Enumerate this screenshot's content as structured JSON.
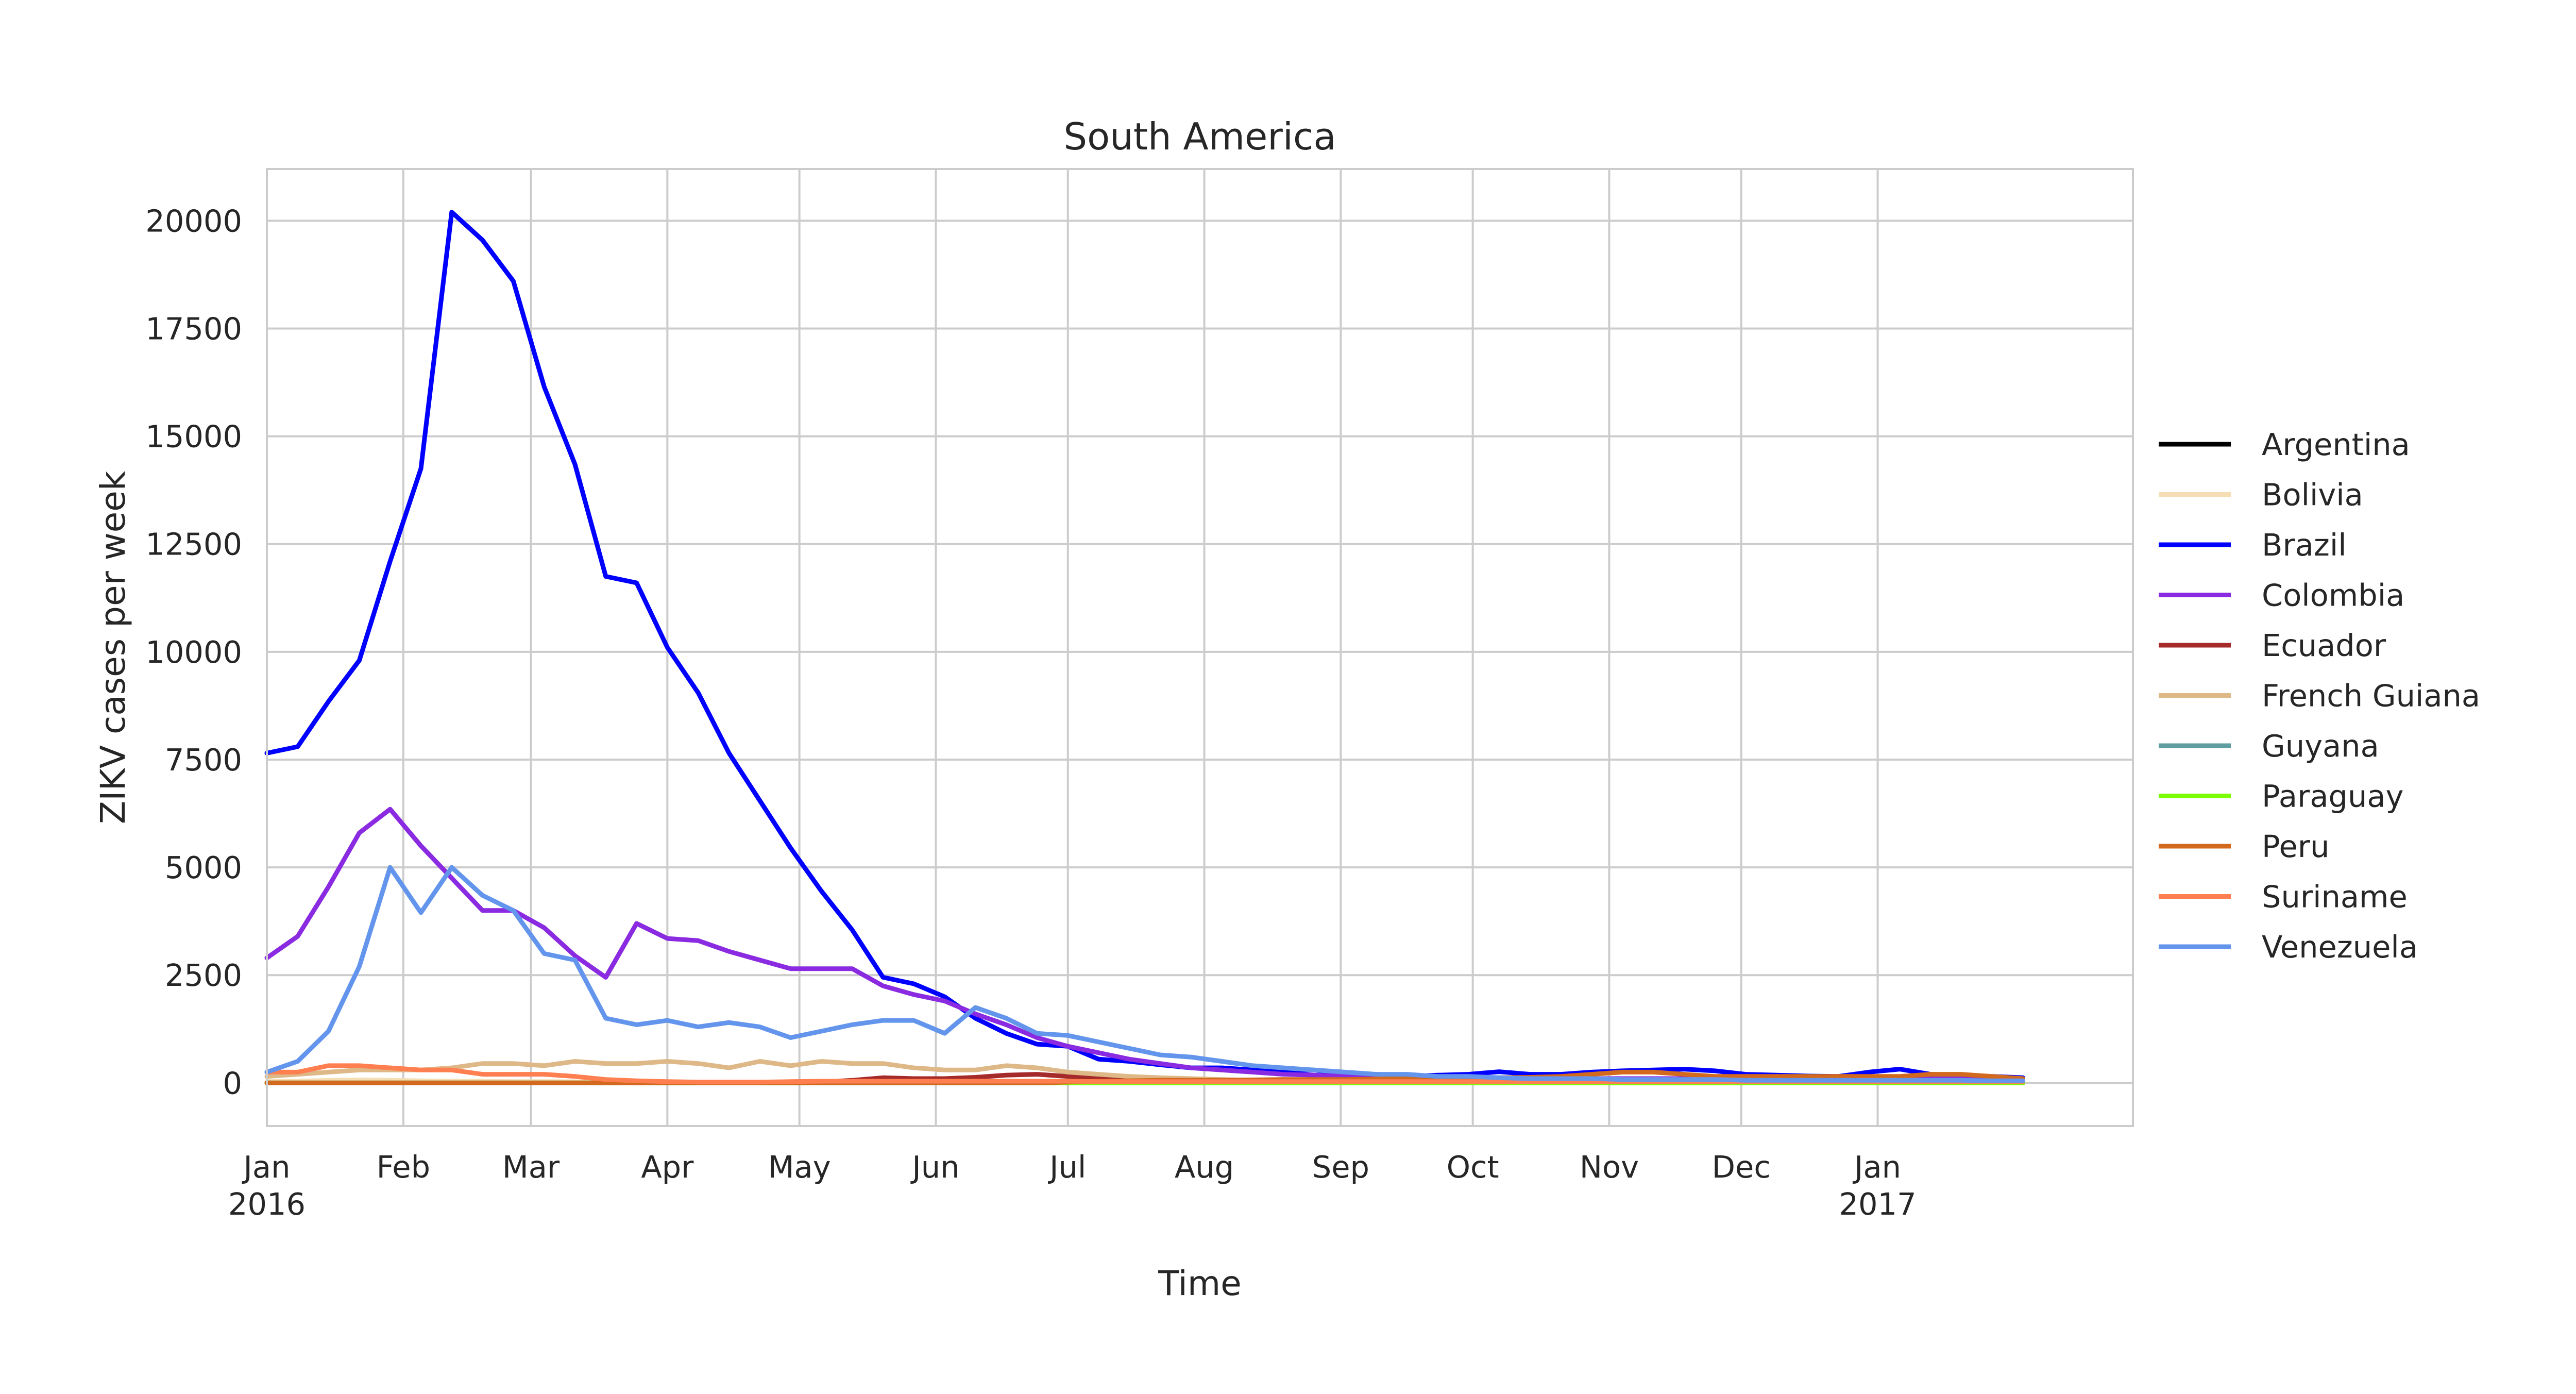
{
  "chart_data": {
    "type": "line",
    "title": "South America",
    "xlabel": "Time",
    "ylabel": "ZIKV cases per week",
    "xlim": [
      "2016-01-01",
      "2017-02-28"
    ],
    "ylim": [
      -1000,
      21200
    ],
    "grid": true,
    "legend_position": "right",
    "y_ticks": [
      0,
      2500,
      5000,
      7500,
      10000,
      12500,
      15000,
      17500,
      20000
    ],
    "y_tick_labels": [
      "0",
      "2500",
      "5000",
      "7500",
      "10000",
      "12500",
      "15000",
      "17500",
      "20000"
    ],
    "x_ticks": [
      "2016-01-01",
      "2016-02-01",
      "2016-03-01",
      "2016-04-01",
      "2016-05-01",
      "2016-06-01",
      "2016-07-01",
      "2016-08-01",
      "2016-09-01",
      "2016-10-01",
      "2016-11-01",
      "2016-12-01",
      "2017-01-01"
    ],
    "x_tick_labels": [
      "Jan\n2016",
      "Feb",
      "Mar",
      "Apr",
      "May",
      "Jun",
      "Jul",
      "Aug",
      "Sep",
      "Oct",
      "Nov",
      "Dec",
      "Jan\n2017"
    ],
    "x_dates": [
      "2016-01-01",
      "2016-01-08",
      "2016-01-15",
      "2016-01-22",
      "2016-01-29",
      "2016-02-05",
      "2016-02-12",
      "2016-02-19",
      "2016-02-26",
      "2016-03-04",
      "2016-03-11",
      "2016-03-18",
      "2016-03-25",
      "2016-04-01",
      "2016-04-08",
      "2016-04-15",
      "2016-04-22",
      "2016-04-29",
      "2016-05-06",
      "2016-05-13",
      "2016-05-20",
      "2016-05-27",
      "2016-06-03",
      "2016-06-10",
      "2016-06-17",
      "2016-06-24",
      "2016-07-01",
      "2016-07-08",
      "2016-07-15",
      "2016-07-22",
      "2016-07-29",
      "2016-08-05",
      "2016-08-12",
      "2016-08-19",
      "2016-08-26",
      "2016-09-02",
      "2016-09-09",
      "2016-09-16",
      "2016-09-23",
      "2016-09-30",
      "2016-10-07",
      "2016-10-14",
      "2016-10-21",
      "2016-10-28",
      "2016-11-04",
      "2016-11-11",
      "2016-11-18",
      "2016-11-25",
      "2016-12-02",
      "2016-12-09",
      "2016-12-16",
      "2016-12-23",
      "2016-12-30",
      "2017-01-06",
      "2017-01-13",
      "2017-01-20",
      "2017-01-27",
      "2017-02-03"
    ],
    "series": [
      {
        "name": "Argentina",
        "color": "#000000",
        "values": [
          0,
          0,
          0,
          0,
          0,
          0,
          0,
          0,
          0,
          0,
          0,
          0,
          0,
          0,
          0,
          0,
          0,
          0,
          0,
          0,
          0,
          0,
          0,
          0,
          0,
          0,
          0,
          0,
          0,
          0,
          0,
          0,
          0,
          0,
          0,
          0,
          0,
          0,
          0,
          0,
          0,
          0,
          0,
          0,
          0,
          0,
          0,
          0,
          0,
          0,
          0,
          0,
          0,
          0,
          0,
          0,
          0,
          0
        ]
      },
      {
        "name": "Bolivia",
        "color": "#f5deb3",
        "values": [
          30,
          40,
          60,
          70,
          60,
          50,
          40,
          40,
          30,
          30,
          25,
          20,
          20,
          20,
          20,
          20,
          20,
          20,
          20,
          20,
          20,
          20,
          20,
          20,
          20,
          20,
          20,
          20,
          20,
          20,
          20,
          20,
          20,
          20,
          20,
          20,
          20,
          20,
          20,
          20,
          20,
          20,
          20,
          20,
          20,
          20,
          20,
          20,
          20,
          20,
          20,
          20,
          20,
          20,
          20,
          20,
          20,
          20
        ]
      },
      {
        "name": "Brazil",
        "color": "#0000ff",
        "values": [
          7650,
          7800,
          8850,
          9800,
          12100,
          14250,
          20200,
          19550,
          18600,
          16150,
          14350,
          11750,
          11600,
          10100,
          9050,
          7650,
          6550,
          5450,
          4450,
          3550,
          2450,
          2300,
          2000,
          1500,
          1150,
          900,
          850,
          550,
          500,
          420,
          350,
          350,
          300,
          280,
          300,
          200,
          200,
          150,
          180,
          200,
          260,
          200,
          200,
          250,
          280,
          300,
          320,
          280,
          200,
          180,
          160,
          150,
          250,
          320,
          200,
          180,
          150,
          120
        ]
      },
      {
        "name": "Colombia",
        "color": "#8a2be2",
        "values": [
          2900,
          3400,
          4550,
          5800,
          6350,
          5500,
          4750,
          4000,
          4000,
          3600,
          2950,
          2450,
          3700,
          3350,
          3300,
          3050,
          2850,
          2650,
          2650,
          2650,
          2250,
          2050,
          1900,
          1600,
          1350,
          1050,
          850,
          700,
          550,
          450,
          350,
          300,
          250,
          200,
          180,
          150,
          130,
          120,
          110,
          100,
          100,
          100,
          100,
          100,
          100,
          100,
          100,
          100,
          100,
          100,
          100,
          100,
          100,
          100,
          100,
          100,
          100,
          100
        ]
      },
      {
        "name": "Ecuador",
        "color": "#a52a2a",
        "values": [
          0,
          0,
          0,
          0,
          0,
          0,
          0,
          0,
          0,
          0,
          0,
          0,
          0,
          0,
          0,
          0,
          0,
          0,
          20,
          60,
          120,
          100,
          100,
          130,
          180,
          200,
          150,
          100,
          60,
          40,
          30,
          20,
          20,
          20,
          20,
          20,
          20,
          20,
          20,
          20,
          20,
          20,
          20,
          20,
          20,
          20,
          20,
          20,
          20,
          20,
          20,
          20,
          20,
          20,
          20,
          20,
          20,
          20
        ]
      },
      {
        "name": "French Guiana",
        "color": "#deb887",
        "values": [
          150,
          200,
          250,
          300,
          300,
          300,
          350,
          450,
          450,
          400,
          500,
          450,
          450,
          500,
          450,
          350,
          500,
          400,
          500,
          450,
          450,
          350,
          300,
          300,
          400,
          350,
          250,
          200,
          150,
          120,
          100,
          80,
          60,
          50,
          40,
          30,
          30,
          30,
          30,
          30,
          30,
          30,
          30,
          30,
          30,
          30,
          30,
          30,
          30,
          30,
          30,
          30,
          30,
          30,
          30,
          30,
          30,
          30
        ]
      },
      {
        "name": "Guyana",
        "color": "#5f9ea0",
        "values": [
          0,
          0,
          0,
          0,
          0,
          0,
          0,
          0,
          0,
          0,
          0,
          0,
          0,
          0,
          0,
          0,
          0,
          0,
          0,
          0,
          0,
          0,
          0,
          0,
          0,
          0,
          0,
          0,
          0,
          0,
          0,
          0,
          0,
          0,
          0,
          0,
          0,
          0,
          0,
          0,
          0,
          0,
          0,
          0,
          0,
          0,
          0,
          0,
          0,
          0,
          0,
          0,
          0,
          0,
          0,
          0,
          0,
          0
        ]
      },
      {
        "name": "Paraguay",
        "color": "#7cfc00",
        "values": [
          0,
          0,
          0,
          0,
          0,
          0,
          0,
          0,
          0,
          0,
          0,
          0,
          0,
          0,
          0,
          0,
          0,
          0,
          0,
          0,
          0,
          0,
          0,
          0,
          0,
          0,
          0,
          0,
          0,
          0,
          0,
          0,
          0,
          0,
          0,
          0,
          0,
          0,
          0,
          0,
          0,
          0,
          0,
          0,
          0,
          0,
          0,
          0,
          0,
          0,
          0,
          0,
          0,
          0,
          0,
          0,
          0,
          0
        ]
      },
      {
        "name": "Peru",
        "color": "#d2691e",
        "values": [
          0,
          0,
          0,
          0,
          0,
          0,
          0,
          0,
          0,
          0,
          0,
          0,
          0,
          0,
          0,
          0,
          0,
          0,
          0,
          0,
          0,
          0,
          0,
          0,
          0,
          0,
          20,
          40,
          50,
          60,
          60,
          60,
          70,
          80,
          80,
          80,
          90,
          100,
          100,
          110,
          120,
          130,
          150,
          200,
          250,
          250,
          200,
          150,
          150,
          150,
          150,
          150,
          150,
          150,
          200,
          200,
          150,
          100
        ]
      },
      {
        "name": "Suriname",
        "color": "#ff7f50",
        "values": [
          250,
          250,
          400,
          400,
          350,
          300,
          300,
          200,
          200,
          200,
          150,
          80,
          50,
          30,
          20,
          20,
          20,
          30,
          40,
          40,
          40,
          40,
          40,
          40,
          40,
          40,
          40,
          30,
          30,
          30,
          30,
          30,
          30,
          30,
          30,
          30,
          30,
          30,
          30,
          30,
          30,
          30,
          30,
          30,
          30,
          30,
          30,
          30,
          30,
          30,
          30,
          30,
          30,
          30,
          30,
          30,
          30,
          30
        ]
      },
      {
        "name": "Venezuela",
        "color": "#6495ed",
        "values": [
          250,
          500,
          1200,
          2700,
          5000,
          3950,
          5000,
          4350,
          4000,
          3000,
          2850,
          1500,
          1350,
          1450,
          1300,
          1400,
          1300,
          1050,
          1200,
          1350,
          1450,
          1450,
          1150,
          1750,
          1500,
          1150,
          1100,
          950,
          800,
          650,
          600,
          500,
          400,
          350,
          300,
          250,
          200,
          200,
          150,
          150,
          120,
          100,
          100,
          100,
          80,
          80,
          80,
          80,
          60,
          60,
          60,
          60,
          60,
          60,
          60,
          60,
          50,
          50
        ]
      }
    ]
  }
}
